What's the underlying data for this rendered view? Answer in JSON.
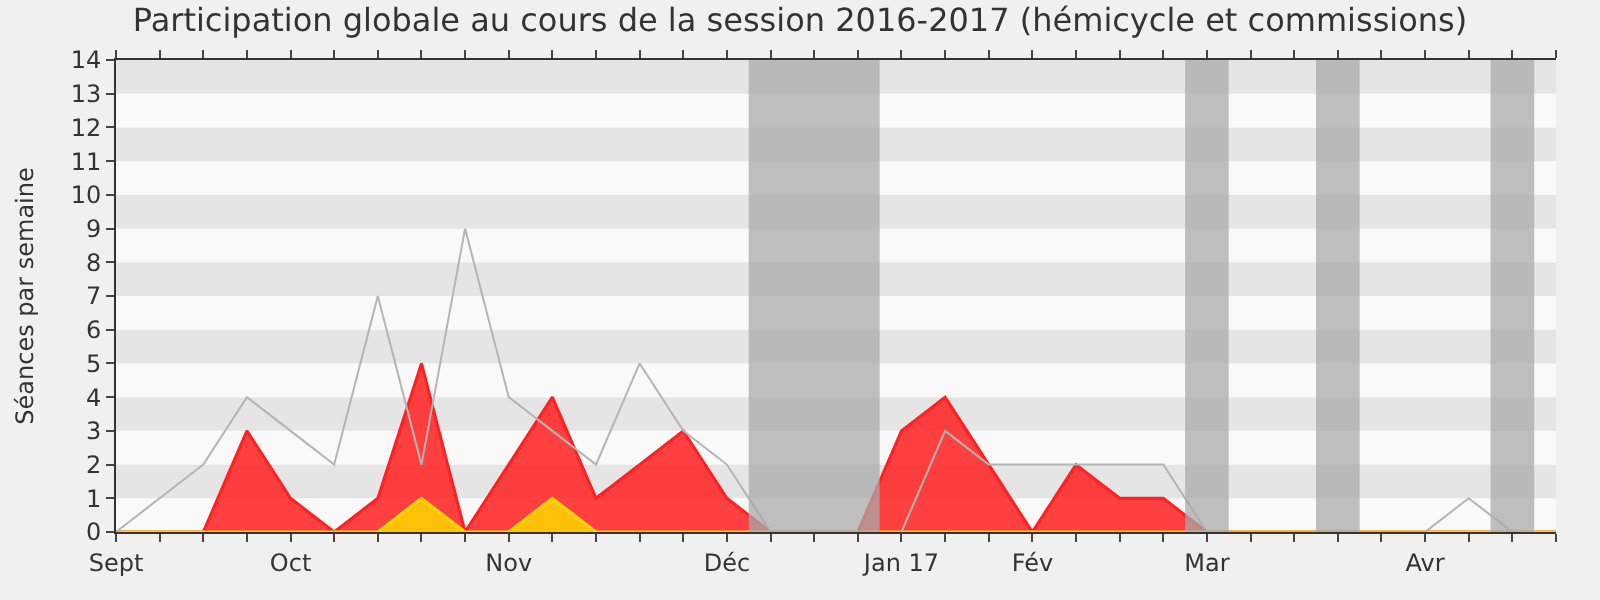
{
  "chart_data": {
    "type": "area",
    "title": "Participation globale au cours de la session 2016-2017 (hémicycle et commissions)",
    "ylabel": "Séances par semaine",
    "x": [
      "2016-09-07",
      "2016-09-14",
      "2016-09-21",
      "2016-09-28",
      "2016-10-05",
      "2016-10-12",
      "2016-10-19",
      "2016-10-26",
      "2016-11-02",
      "2016-11-09",
      "2016-11-16",
      "2016-11-23",
      "2016-11-30",
      "2016-12-07",
      "2016-12-14",
      "2016-12-21",
      "2016-12-28",
      "2017-01-04",
      "2017-01-11",
      "2017-01-18",
      "2017-01-25",
      "2017-02-01",
      "2017-02-08",
      "2017-02-15",
      "2017-02-22",
      "2017-03-01",
      "2017-03-08",
      "2017-03-15",
      "2017-03-22",
      "2017-03-29",
      "2017-04-05",
      "2017-04-12",
      "2017-04-19",
      "2017-04-26"
    ],
    "series": [
      {
        "color": "#ff2020",
        "values": [
          0,
          0,
          0,
          3,
          1,
          0,
          1,
          5,
          0,
          2,
          4,
          1,
          2,
          3,
          1,
          0,
          0,
          0,
          3,
          4,
          2,
          0,
          2,
          1,
          1,
          0,
          0,
          0,
          0,
          0,
          0,
          0,
          0,
          0
        ]
      },
      {
        "color": "#ffd700",
        "values": [
          0,
          0,
          0,
          0,
          0,
          0,
          0,
          1,
          0,
          0,
          1,
          0,
          0,
          0,
          0,
          0,
          0,
          0,
          0,
          0,
          0,
          0,
          0,
          0,
          0,
          0,
          0,
          0,
          0,
          0,
          0,
          0,
          0,
          0
        ]
      },
      {
        "type": "line",
        "color": "#b4b4b4",
        "values": [
          0,
          1,
          2,
          4,
          3,
          2,
          7,
          2,
          9,
          4,
          3,
          2,
          5,
          3,
          2,
          0,
          0,
          0,
          0,
          3,
          2,
          2,
          2,
          2,
          2,
          0,
          0,
          0,
          0,
          0,
          0,
          1,
          0,
          null
        ]
      }
    ],
    "bands": [
      {
        "axis": "x",
        "from": "2016-12-17T12:00",
        "to": "2017-01-07T12:00",
        "color": "#aaaaaa"
      },
      {
        "axis": "x",
        "from": "2017-02-25T12:00",
        "to": "2017-03-04T12:00",
        "color": "#aaaaaa"
      },
      {
        "axis": "x",
        "from": "2017-03-18T12:00",
        "to": "2017-03-25T12:00",
        "color": "#aaaaaa"
      },
      {
        "axis": "x",
        "from": "2017-04-15T12:00",
        "to": "2017-04-22T12:00",
        "color": "#aaaaaa"
      }
    ],
    "xlim": [
      "2016-09-07",
      "2017-04-26"
    ],
    "xticks": [
      {
        "value": "2016-09-07",
        "label": "Sept"
      },
      {
        "value": "2016-09-14",
        "label": null
      },
      {
        "value": "2016-09-21",
        "label": null
      },
      {
        "value": "2016-09-28",
        "label": null
      },
      {
        "value": "2016-10-05",
        "label": "Oct"
      },
      {
        "value": "2016-10-12",
        "label": null
      },
      {
        "value": "2016-10-19",
        "label": null
      },
      {
        "value": "2016-10-26",
        "label": null
      },
      {
        "value": "2016-11-02",
        "label": null
      },
      {
        "value": "2016-11-09",
        "label": "Nov"
      },
      {
        "value": "2016-11-16",
        "label": null
      },
      {
        "value": "2016-11-23",
        "label": null
      },
      {
        "value": "2016-11-30",
        "label": null
      },
      {
        "value": "2016-12-07",
        "label": null
      },
      {
        "value": "2016-12-14",
        "label": "Déc"
      },
      {
        "value": "2016-12-21",
        "label": null
      },
      {
        "value": "2016-12-28",
        "label": null
      },
      {
        "value": "2017-01-04",
        "label": null
      },
      {
        "value": "2017-01-11",
        "label": "Jan 17"
      },
      {
        "value": "2017-01-18",
        "label": null
      },
      {
        "value": "2017-01-25",
        "label": null
      },
      {
        "value": "2017-02-01",
        "label": "Fév"
      },
      {
        "value": "2017-02-08",
        "label": null
      },
      {
        "value": "2017-02-15",
        "label": null
      },
      {
        "value": "2017-02-22",
        "label": null
      },
      {
        "value": "2017-03-01",
        "label": "Mar"
      },
      {
        "value": "2017-03-08",
        "label": null
      },
      {
        "value": "2017-03-15",
        "label": null
      },
      {
        "value": "2017-03-22",
        "label": null
      },
      {
        "value": "2017-03-29",
        "label": null
      },
      {
        "value": "2017-04-05",
        "label": "Avr"
      },
      {
        "value": "2017-04-12",
        "label": null
      },
      {
        "value": "2017-04-19",
        "label": null
      },
      {
        "value": "2017-04-26",
        "label": null
      }
    ],
    "ylim": [
      0,
      14
    ],
    "yticks": [
      0,
      1,
      2,
      3,
      4,
      5,
      6,
      7,
      8,
      9,
      10,
      11,
      12,
      13,
      14
    ]
  }
}
